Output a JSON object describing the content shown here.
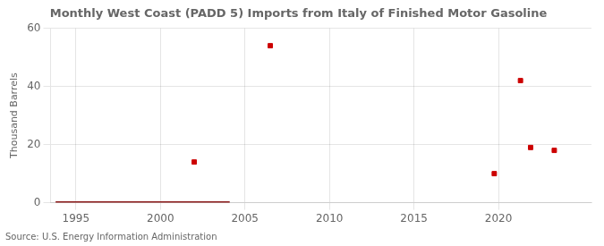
{
  "chart_data": {
    "type": "scatter",
    "title": "Monthly West Coast (PADD 5) Imports from Italy of Finished Motor Gasoline",
    "y_label": "Thousand Barrels",
    "annotations": [
      "Source: U.S. Energy Information Administration"
    ],
    "xlim": [
      1993.5,
      2025.5
    ],
    "xticks": [
      1995,
      2000,
      2005,
      2010,
      2015,
      2020
    ],
    "ylim": [
      0,
      60
    ],
    "yticks": [
      0,
      20,
      40,
      60
    ],
    "grid": true,
    "series": [
      {
        "type": "line",
        "color": "#8b1a1a",
        "x": [
          1993.8,
          2004.1
        ],
        "values": [
          0,
          0
        ]
      },
      {
        "type": "scatter",
        "color": "#cc0000",
        "marker": "square",
        "x": [
          2002.0,
          2006.5,
          2019.75,
          2021.3,
          2021.9,
          2023.3
        ],
        "values": [
          14,
          54,
          10,
          42,
          19,
          18
        ]
      }
    ]
  }
}
